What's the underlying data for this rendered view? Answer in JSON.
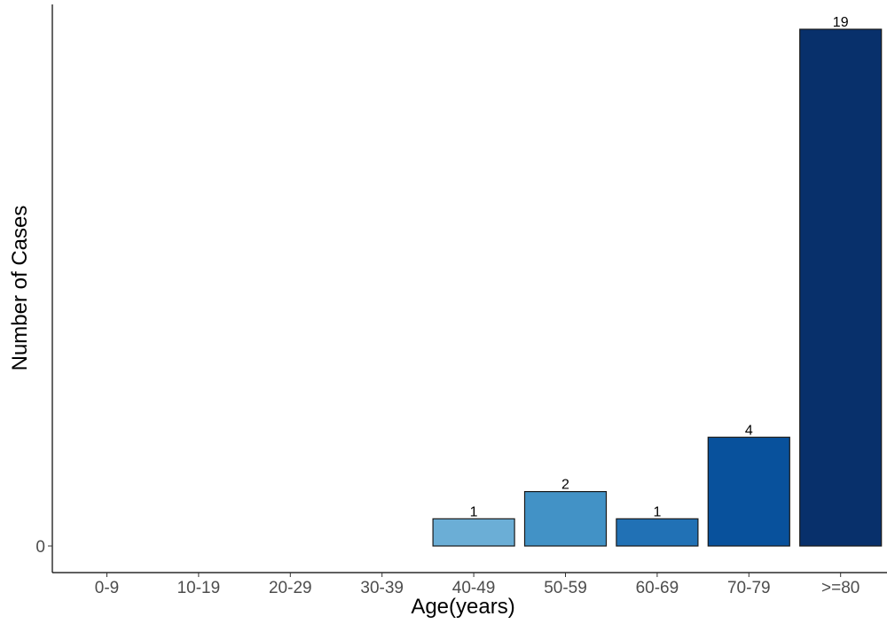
{
  "chart_data": {
    "type": "bar",
    "title": "",
    "xlabel": "Age(years)",
    "ylabel": "Number of Cases",
    "categories": [
      "0-9",
      "10-19",
      "20-29",
      "30-39",
      "40-49",
      "50-59",
      "60-69",
      "70-79",
      ">=80"
    ],
    "values": [
      0,
      0,
      0,
      0,
      1,
      2,
      1,
      4,
      19
    ],
    "data_labels": [
      "",
      "",
      "",
      "",
      "1",
      "2",
      "1",
      "4",
      "19"
    ],
    "y_tick_labels": [
      "0"
    ],
    "y_tick_values": [
      0
    ],
    "ylim": [
      -1,
      19.5
    ],
    "bar_colors": [
      "#c6dbef",
      "#c6dbef",
      "#c6dbef",
      "#c6dbef",
      "#6baed6",
      "#4292c6",
      "#2171b5",
      "#08519c",
      "#08306b"
    ],
    "bar_outline_color": "#1a1a1a",
    "grid": false,
    "legend": "none"
  }
}
